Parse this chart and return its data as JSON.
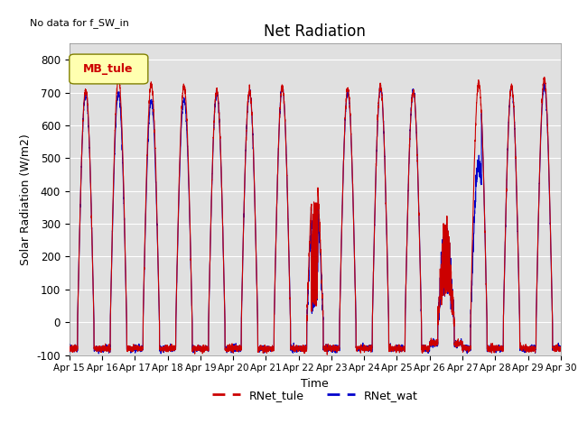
{
  "title": "Net Radiation",
  "xlabel": "Time",
  "ylabel": "Solar Radiation (W/m2)",
  "note": "No data for f_SW_in",
  "legend_box_label": "MB_tule",
  "ylim": [
    -100,
    850
  ],
  "yticks": [
    -100,
    0,
    100,
    200,
    300,
    400,
    500,
    600,
    700,
    800
  ],
  "n_days": 15,
  "x_tick_labels": [
    "Apr 15",
    "Apr 16",
    "Apr 17",
    "Apr 18",
    "Apr 19",
    "Apr 20",
    "Apr 21",
    "Apr 22",
    "Apr 23",
    "Apr 24",
    "Apr 25",
    "Apr 26",
    "Apr 27",
    "Apr 28",
    "Apr 29",
    "Apr 30"
  ],
  "color_tule": "#cc0000",
  "color_wat": "#0000cc",
  "legend_label_tule": "RNet_tule",
  "legend_label_wat": "RNet_wat",
  "plot_bg_color": "#e0e0e0",
  "fig_bg_color": "#ffffff",
  "linewidth": 0.8,
  "day_peaks_tule": [
    710,
    745,
    725,
    720,
    705,
    705,
    715,
    470,
    710,
    720,
    705,
    310,
    730,
    720,
    740,
    0
  ],
  "day_peaks_wat": [
    700,
    700,
    675,
    680,
    700,
    700,
    715,
    400,
    700,
    715,
    705,
    315,
    480,
    715,
    720,
    0
  ],
  "night_val": -80,
  "samples_per_day": 288
}
